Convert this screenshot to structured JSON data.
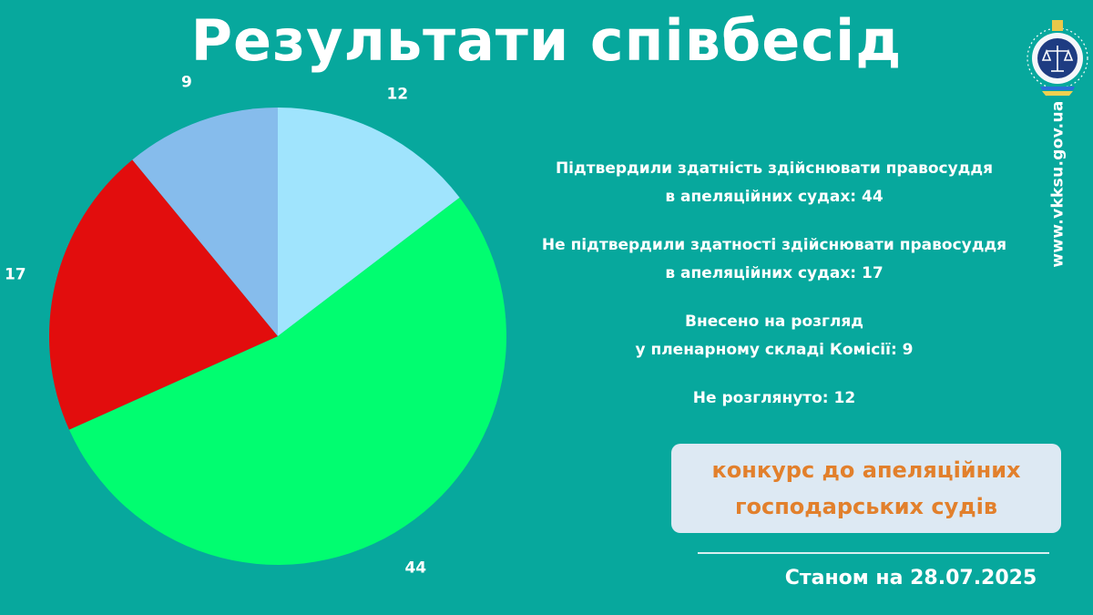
{
  "title": "Результати співбесід",
  "chart_data": {
    "type": "pie",
    "title": "",
    "values": [
      12,
      44,
      17,
      9
    ],
    "data_labels": [
      "12",
      "44",
      "17",
      "9"
    ],
    "colors": [
      "#a0e4fd",
      "#01fd70",
      "#e20d0d",
      "#86bcec"
    ],
    "start": "12 o'clock",
    "direction": "clockwise"
  },
  "legend": [
    {
      "lines": [
        "Підтвердили здатність здійснювати правосуддя",
        "в апеляційних судах: 44"
      ]
    },
    {
      "lines": [
        "Не підтвердили здатності здійснювати правосуддя",
        "в апеляційних судах: 17"
      ]
    },
    {
      "lines": [
        "Внесено на розгляд",
        "у пленарному складі Комісії: 9"
      ]
    },
    {
      "lines": [
        "Не розглянуто: 12"
      ]
    }
  ],
  "contest": {
    "lines": [
      "конкурс до апеляційних",
      "господарських судів"
    ]
  },
  "date": "Станом на 28.07.2025",
  "website": "www.vkksu.gov.ua",
  "colors": {
    "background": "#07a89d",
    "accent": "#e2802c",
    "box": "#dde9f3"
  },
  "icons": {
    "emblem": "vkksu-emblem-icon"
  }
}
